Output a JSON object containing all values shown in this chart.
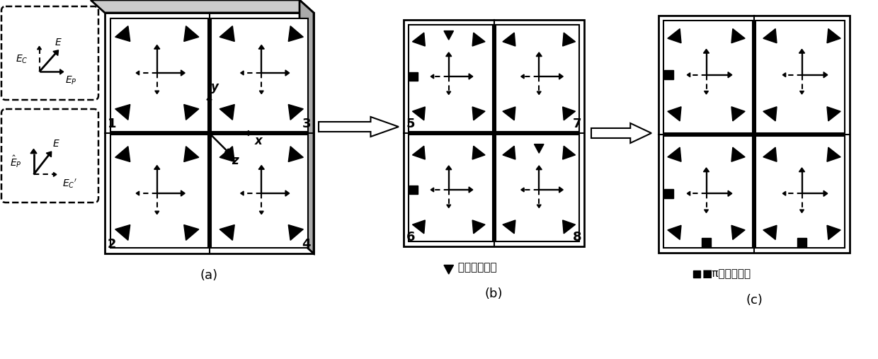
{
  "bg_color": "#ffffff",
  "line_color": "#000000",
  "fig_width": 12.4,
  "fig_height": 5.07,
  "dpi": 100,
  "label_a": "(a)",
  "label_b": "(b)",
  "label_c": "(c)",
  "legend_b_sym": "▼",
  "legend_b_text": " 同相馈电端口",
  "legend_c_sym": "■",
  "legend_c_text": "π相馈电端口"
}
